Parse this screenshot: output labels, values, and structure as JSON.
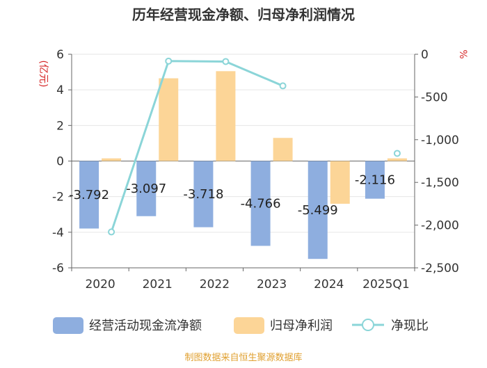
{
  "chart_data": {
    "type": "bar+line",
    "title": "历年经营现金净额、归母净利润情况",
    "left_unit": "亿元",
    "right_unit": "%",
    "categories": [
      "2020",
      "2021",
      "2022",
      "2023",
      "2024",
      "2025Q1"
    ],
    "left_axis": {
      "min": -6,
      "max": 6,
      "ticks": [
        -6,
        -4,
        -2,
        0,
        2,
        4,
        6
      ]
    },
    "right_axis": {
      "min": -2500,
      "max": 0,
      "ticks": [
        0,
        -500,
        -1000,
        -1500,
        -2000,
        -2500
      ],
      "tick_labels": [
        "0",
        "-500",
        "-1,000",
        "-1,500",
        "-2,000",
        "-2,500"
      ]
    },
    "series": [
      {
        "name": "经营活动现金流净额",
        "type": "bar",
        "axis": "left",
        "color": "#8eaedf",
        "values": [
          -3.792,
          -3.097,
          -3.718,
          -4.766,
          -5.499,
          -2.116
        ],
        "labels": [
          "-3.792",
          "-3.097",
          "-3.718",
          "-4.766",
          "-5.499",
          "-2.116"
        ]
      },
      {
        "name": "归母净利润",
        "type": "bar",
        "axis": "left",
        "color": "#fcd597",
        "values": [
          0.15,
          4.65,
          5.05,
          1.3,
          -2.4,
          0.15
        ]
      },
      {
        "name": "净现比",
        "type": "line",
        "axis": "right",
        "color": "#8bd5d8",
        "values": [
          -2080,
          -80,
          -85,
          -370,
          null,
          -1160
        ]
      }
    ],
    "legend_position": "bottom",
    "source": "制图数据来自恒生聚源数据库"
  }
}
